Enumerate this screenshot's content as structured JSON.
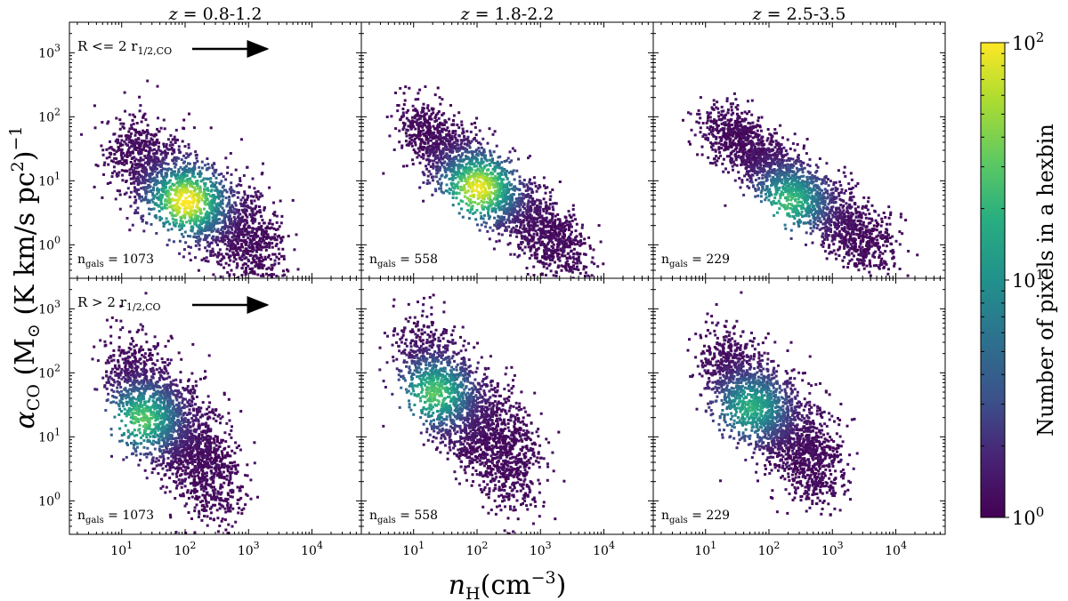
{
  "chart_data": {
    "type": "heatmap",
    "subtype": "hexbin",
    "x_axis": {
      "label_var": "n",
      "label_sub": "H",
      "label_unit": "(cm",
      "label_exp": "−3",
      "label_close": ")",
      "scale": "log",
      "xlim": [
        1.5,
        60000
      ],
      "ticks": [
        {
          "base": "10",
          "exp": "1",
          "value": 10
        },
        {
          "base": "10",
          "exp": "2",
          "value": 100
        },
        {
          "base": "10",
          "exp": "3",
          "value": 1000
        },
        {
          "base": "10",
          "exp": "4",
          "value": 10000
        }
      ]
    },
    "y_axis": {
      "label_var": "α",
      "label_sub": "CO",
      "label_unit": " (M",
      "label_sun": "⊙",
      "label_rest": " (K km/s pc",
      "label_exp2": "2",
      "label_close": ")",
      "label_exp": "−1",
      "scale": "log",
      "ylim": [
        0.3,
        3000
      ],
      "ticks": [
        {
          "base": "10",
          "exp": "0",
          "value": 1
        },
        {
          "base": "10",
          "exp": "1",
          "value": 10
        },
        {
          "base": "10",
          "exp": "2",
          "value": 100
        },
        {
          "base": "10",
          "exp": "3",
          "value": 1000
        }
      ]
    },
    "columns": [
      {
        "title_var": "z",
        "title_range": " = 0.8-1.2"
      },
      {
        "title_var": "z",
        "title_range": " = 1.8-2.2"
      },
      {
        "title_var": "z",
        "title_range": " = 2.5-3.5"
      }
    ],
    "rows": [
      {
        "region_prefix": "R <= 2 r",
        "region_sub": "1/2,CO"
      },
      {
        "region_prefix": "R > 2 r",
        "region_sub": "1/2,CO"
      }
    ],
    "ngals_label": {
      "prefix": "n",
      "sub": "gals",
      "sep": " = "
    },
    "panels": [
      {
        "row": 0,
        "col": 0,
        "ngals": "1073",
        "density": [
          {
            "x": 100,
            "y": 5,
            "peak": 100
          }
        ],
        "shape": {
          "x0": 10,
          "y0": 30,
          "x1": 2000,
          "y1": 0.8,
          "spread": 0.7
        }
      },
      {
        "row": 0,
        "col": 1,
        "ngals": "558",
        "density": [
          {
            "x": 100,
            "y": 8,
            "peak": 80
          }
        ],
        "shape": {
          "x0": 10,
          "y0": 80,
          "x1": 3000,
          "y1": 0.7,
          "spread": 0.55
        }
      },
      {
        "row": 0,
        "col": 2,
        "ngals": "229",
        "density": [
          {
            "x": 200,
            "y": 5,
            "peak": 20
          }
        ],
        "shape": {
          "x0": 15,
          "y0": 80,
          "x1": 5000,
          "y1": 0.8,
          "spread": 0.45
        }
      },
      {
        "row": 1,
        "col": 0,
        "ngals": "1073",
        "density": [
          {
            "x": 20,
            "y": 20,
            "peak": 25
          }
        ],
        "shape": {
          "x0": 10,
          "y0": 100,
          "x1": 400,
          "y1": 2,
          "spread": 0.8
        }
      },
      {
        "row": 1,
        "col": 1,
        "ngals": "558",
        "density": [
          {
            "x": 20,
            "y": 50,
            "peak": 25
          }
        ],
        "shape": {
          "x0": 10,
          "y0": 200,
          "x1": 500,
          "y1": 3,
          "spread": 0.8
        }
      },
      {
        "row": 1,
        "col": 2,
        "ngals": "229",
        "density": [
          {
            "x": 50,
            "y": 30,
            "peak": 15
          }
        ],
        "shape": {
          "x0": 15,
          "y0": 150,
          "x1": 800,
          "y1": 3,
          "spread": 0.7
        }
      }
    ],
    "colorbar": {
      "label": "Number of pixels in a hexbin",
      "scale": "log",
      "range": [
        1,
        100
      ],
      "colormap": "viridis",
      "ticks": [
        {
          "base": "10",
          "exp": "0",
          "value": 1
        },
        {
          "base": "10",
          "exp": "1",
          "value": 10
        },
        {
          "base": "10",
          "exp": "2",
          "value": 100
        }
      ]
    }
  }
}
